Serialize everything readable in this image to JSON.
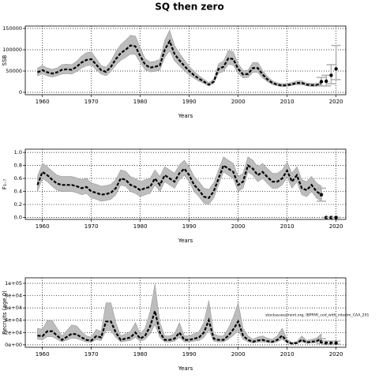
{
  "chart_data": [
    {
      "type": "line",
      "title": "SQ then zero",
      "xlabel": "Years",
      "ylabel": "SSB",
      "xlim": [
        1956.5,
        2022
      ],
      "xticks": [
        1960,
        1970,
        1980,
        1990,
        2000,
        2010,
        2020
      ],
      "ylim": [
        -5600,
        155600
      ],
      "yticks": [
        0,
        50000,
        100000,
        150000
      ],
      "grid": true,
      "color": "#000000",
      "band_color": "#bdbdbd",
      "projection_color": "#b0b0b0",
      "x": [
        1959,
        1960,
        1961,
        1962,
        1963,
        1964,
        1965,
        1966,
        1967,
        1968,
        1969,
        1970,
        1971,
        1972,
        1973,
        1974,
        1975,
        1976,
        1977,
        1978,
        1979,
        1980,
        1981,
        1982,
        1983,
        1984,
        1985,
        1986,
        1987,
        1988,
        1989,
        1990,
        1991,
        1992,
        1993,
        1994,
        1995,
        1996,
        1997,
        1998,
        1999,
        2000,
        2001,
        2002,
        2003,
        2004,
        2005,
        2006,
        2007,
        2008,
        2009,
        2010,
        2011,
        2012,
        2013,
        2014,
        2015,
        2016,
        2017
      ],
      "values": [
        47000,
        52000,
        47000,
        44000,
        47000,
        53000,
        54000,
        53000,
        60000,
        70000,
        76000,
        78000,
        65000,
        52000,
        48000,
        60000,
        78000,
        92000,
        100000,
        110000,
        108000,
        85000,
        65000,
        58000,
        60000,
        63000,
        100000,
        120000,
        90000,
        75000,
        62000,
        50000,
        40000,
        32000,
        25000,
        18000,
        25000,
        55000,
        60000,
        80000,
        78000,
        55000,
        42000,
        43000,
        57000,
        57000,
        42000,
        30000,
        22000,
        18000,
        16000,
        17000,
        19000,
        22000,
        22000,
        18000,
        17000,
        17000,
        20000
      ],
      "lower": [
        39000,
        43000,
        39000,
        36000,
        39000,
        43000,
        44000,
        43000,
        49000,
        57000,
        62000,
        64000,
        53000,
        43000,
        39000,
        49000,
        64000,
        75000,
        82000,
        90000,
        89000,
        70000,
        53000,
        48000,
        49000,
        52000,
        82000,
        98000,
        74000,
        62000,
        51000,
        41000,
        33000,
        26000,
        21000,
        15000,
        21000,
        45000,
        49000,
        66000,
        64000,
        45000,
        34000,
        35000,
        47000,
        47000,
        34000,
        25000,
        18000,
        15000,
        13000,
        14000,
        16000,
        18000,
        18000,
        15000,
        14000,
        14000,
        16000
      ],
      "upper": [
        57000,
        63000,
        57000,
        54000,
        57000,
        65000,
        66000,
        65000,
        73000,
        85000,
        93000,
        95000,
        79000,
        63000,
        59000,
        73000,
        95000,
        112000,
        122000,
        134000,
        132000,
        104000,
        79000,
        71000,
        73000,
        77000,
        122000,
        146000,
        110000,
        92000,
        76000,
        61000,
        49000,
        39000,
        31000,
        22000,
        31000,
        67000,
        73000,
        98000,
        95000,
        67000,
        51000,
        52000,
        70000,
        70000,
        51000,
        37000,
        27000,
        22000,
        20000,
        21000,
        23000,
        27000,
        27000,
        22000,
        21000,
        21000,
        24000
      ],
      "projection": {
        "x": [
          2017,
          2018,
          2019,
          2020
        ],
        "values": [
          25000,
          26000,
          40000,
          55000
        ],
        "lower": [
          15000,
          15000,
          20000,
          30000
        ],
        "upper": [
          35000,
          40000,
          65000,
          110000
        ]
      }
    },
    {
      "type": "line",
      "xlabel": "Years",
      "ylabel": "F₃₋₇",
      "xlim": [
        1956.5,
        2022
      ],
      "xticks": [
        1960,
        1970,
        1980,
        1990,
        2000,
        2010,
        2020
      ],
      "ylim": [
        -0.03,
        1.05
      ],
      "yticks": [
        {
          "value": 0,
          "label": "0.0"
        },
        0.2,
        0.4,
        0.6,
        0.8,
        {
          "value": 1,
          "label": "1.0"
        }
      ],
      "grid": true,
      "color": "#000000",
      "band_color": "#bdbdbd",
      "projection_color": "#b0b0b0",
      "x": [
        1959,
        1960,
        1961,
        1962,
        1963,
        1964,
        1965,
        1966,
        1967,
        1968,
        1969,
        1970,
        1971,
        1972,
        1973,
        1974,
        1975,
        1976,
        1977,
        1978,
        1979,
        1980,
        1981,
        1982,
        1983,
        1984,
        1985,
        1986,
        1987,
        1988,
        1989,
        1990,
        1991,
        1992,
        1993,
        1994,
        1995,
        1996,
        1997,
        1998,
        1999,
        2000,
        2001,
        2002,
        2003,
        2004,
        2005,
        2006,
        2007,
        2008,
        2009,
        2010,
        2011,
        2012,
        2013,
        2014,
        2015,
        2016,
        2017
      ],
      "values": [
        0.5,
        0.7,
        0.65,
        0.58,
        0.52,
        0.5,
        0.5,
        0.5,
        0.48,
        0.45,
        0.47,
        0.4,
        0.38,
        0.35,
        0.36,
        0.38,
        0.45,
        0.6,
        0.58,
        0.5,
        0.47,
        0.42,
        0.45,
        0.47,
        0.6,
        0.5,
        0.65,
        0.6,
        0.55,
        0.68,
        0.75,
        0.65,
        0.5,
        0.42,
        0.32,
        0.3,
        0.4,
        0.6,
        0.8,
        0.75,
        0.7,
        0.5,
        0.55,
        0.8,
        0.75,
        0.65,
        0.7,
        0.62,
        0.55,
        0.55,
        0.6,
        0.72,
        0.55,
        0.65,
        0.45,
        0.42,
        0.5,
        0.4,
        0.35
      ],
      "lower": [
        0.4,
        0.6,
        0.55,
        0.48,
        0.42,
        0.4,
        0.4,
        0.4,
        0.38,
        0.35,
        0.37,
        0.3,
        0.28,
        0.25,
        0.26,
        0.28,
        0.35,
        0.5,
        0.48,
        0.4,
        0.37,
        0.32,
        0.35,
        0.37,
        0.5,
        0.4,
        0.55,
        0.5,
        0.45,
        0.58,
        0.65,
        0.55,
        0.4,
        0.32,
        0.22,
        0.2,
        0.3,
        0.5,
        0.7,
        0.65,
        0.6,
        0.4,
        0.45,
        0.7,
        0.65,
        0.55,
        0.6,
        0.52,
        0.45,
        0.45,
        0.5,
        0.62,
        0.45,
        0.55,
        0.35,
        0.32,
        0.4,
        0.3,
        0.25
      ],
      "upper": [
        0.63,
        0.83,
        0.78,
        0.71,
        0.65,
        0.63,
        0.63,
        0.63,
        0.61,
        0.58,
        0.6,
        0.53,
        0.51,
        0.48,
        0.49,
        0.51,
        0.58,
        0.73,
        0.71,
        0.63,
        0.6,
        0.55,
        0.58,
        0.6,
        0.73,
        0.63,
        0.78,
        0.73,
        0.68,
        0.81,
        0.88,
        0.78,
        0.63,
        0.55,
        0.45,
        0.43,
        0.53,
        0.73,
        0.93,
        0.88,
        0.83,
        0.63,
        0.68,
        0.93,
        0.88,
        0.78,
        0.83,
        0.75,
        0.68,
        0.68,
        0.73,
        0.85,
        0.68,
        0.78,
        0.58,
        0.55,
        0.63,
        0.53,
        0.48
      ],
      "projection": {
        "x": [
          2017,
          2018,
          2019,
          2020
        ],
        "values": [
          0.35,
          0,
          0,
          0
        ],
        "lower": [
          0.25,
          0,
          0,
          0
        ],
        "upper": [
          0.45,
          0,
          0,
          0
        ]
      }
    },
    {
      "type": "line",
      "xlabel": "Years",
      "ylabel": "Recruits (age 0)",
      "annotation": "stockassessment.org, IBPFAR_cod_with_interim_CAA_201",
      "xlim": [
        1956.5,
        2022
      ],
      "xticks": [
        1960,
        1970,
        1980,
        1990,
        2000,
        2010,
        2020
      ],
      "ylim": [
        -4000,
        109000
      ],
      "yticks": [
        {
          "value": 0,
          "label": "0e+00"
        },
        {
          "value": 20000,
          "label": "2e+04"
        },
        {
          "value": 40000,
          "label": "4e+04"
        },
        {
          "value": 60000,
          "label": "6e+04"
        },
        {
          "value": 80000,
          "label": "8e+04"
        },
        {
          "value": 100000,
          "label": "1e+05"
        }
      ],
      "grid": true,
      "color": "#000000",
      "band_color": "#bdbdbd",
      "projection_color": "#b0b0b0",
      "x": [
        1959,
        1960,
        1961,
        1962,
        1963,
        1964,
        1965,
        1966,
        1967,
        1968,
        1969,
        1970,
        1971,
        1972,
        1973,
        1974,
        1975,
        1976,
        1977,
        1978,
        1979,
        1980,
        1981,
        1982,
        1983,
        1984,
        1985,
        1986,
        1987,
        1988,
        1989,
        1990,
        1991,
        1992,
        1993,
        1994,
        1995,
        1996,
        1997,
        1998,
        1999,
        2000,
        2001,
        2002,
        2003,
        2004,
        2005,
        2006,
        2007,
        2008,
        2009,
        2010,
        2011,
        2012,
        2013,
        2014,
        2015,
        2016,
        2017
      ],
      "values": [
        15000,
        14000,
        22000,
        22000,
        15000,
        8000,
        13000,
        18000,
        17000,
        12000,
        8000,
        7000,
        14000,
        12000,
        38000,
        38000,
        20000,
        8000,
        10000,
        12000,
        20000,
        10000,
        15000,
        30000,
        55000,
        20000,
        8000,
        8000,
        10000,
        20000,
        8000,
        8000,
        10000,
        12000,
        20000,
        40000,
        10000,
        8000,
        8000,
        15000,
        25000,
        38000,
        15000,
        8000,
        5000,
        7000,
        8000,
        6000,
        5000,
        8000,
        15000,
        5000,
        2000,
        3000,
        8000,
        4000,
        5000,
        6000,
        10000
      ],
      "lower": [
        9000,
        8400,
        13200,
        13200,
        9000,
        4800,
        7800,
        10800,
        10200,
        7200,
        4800,
        4200,
        8400,
        7200,
        22800,
        22800,
        12000,
        4800,
        6000,
        7200,
        12000,
        6000,
        9000,
        18000,
        33000,
        12000,
        4800,
        4800,
        6000,
        12000,
        4800,
        4800,
        6000,
        7200,
        12000,
        24000,
        6000,
        4800,
        4800,
        9000,
        15000,
        22800,
        9000,
        4800,
        3000,
        4200,
        4800,
        3600,
        3000,
        4800,
        9000,
        3000,
        1200,
        1800,
        4800,
        2400,
        3000,
        3600,
        6000
      ],
      "upper": [
        27000,
        25200,
        39600,
        39600,
        27000,
        14400,
        23400,
        32400,
        30600,
        21600,
        14400,
        12600,
        25200,
        21600,
        68400,
        68400,
        36000,
        14400,
        18000,
        21600,
        36000,
        18000,
        27000,
        54000,
        99000,
        36000,
        14400,
        14400,
        18000,
        36000,
        14400,
        14400,
        18000,
        21600,
        36000,
        72000,
        18000,
        14400,
        14400,
        27000,
        45000,
        68400,
        27000,
        14400,
        9000,
        12600,
        14400,
        10800,
        9000,
        14400,
        27000,
        9000,
        3600,
        5400,
        14400,
        7200,
        9000,
        10800,
        18000
      ],
      "projection": {
        "x": [
          2017,
          2018,
          2019,
          2020
        ],
        "values": [
          5000,
          3000,
          3000,
          3000
        ],
        "lower": [
          2000,
          1000,
          1000,
          1000
        ],
        "upper": [
          10000,
          6000,
          6000,
          6000
        ]
      }
    }
  ]
}
